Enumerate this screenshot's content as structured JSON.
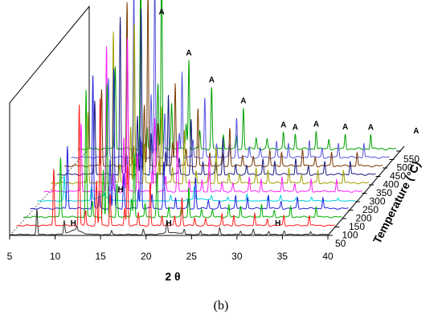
{
  "chart_data": {
    "type": "line",
    "subtype": "stacked-3d-waterfall",
    "xlabel": "2 θ",
    "zlabel": "Temperature (°C)",
    "x_range": [
      5,
      40
    ],
    "x_ticks": [
      5,
      10,
      15,
      20,
      25,
      30,
      35,
      40
    ],
    "series": [
      {
        "temperature": 50,
        "color": "#333333",
        "pattern": "H"
      },
      {
        "temperature": 100,
        "color": "#ff1a1a",
        "pattern": "A"
      },
      {
        "temperature": 150,
        "color": "#00b000",
        "pattern": "A"
      },
      {
        "temperature": 200,
        "color": "#2222dd",
        "pattern": "A"
      },
      {
        "temperature": 250,
        "color": "#00d0e0",
        "pattern": "H"
      },
      {
        "temperature": 300,
        "color": "#ff22ff",
        "pattern": "A"
      },
      {
        "temperature": 350,
        "color": "#a0a000",
        "pattern": "A"
      },
      {
        "temperature": 400,
        "color": "#1a1a80",
        "pattern": "A"
      },
      {
        "temperature": 450,
        "color": "#7a3a00",
        "pattern": "A"
      },
      {
        "temperature": 500,
        "color": "#5555dd",
        "pattern": "A"
      },
      {
        "temperature": 550,
        "color": "#00a000",
        "pattern": "A"
      }
    ],
    "annotations": [
      {
        "text": "A",
        "x": 14.2,
        "series_temperature": 550
      },
      {
        "text": "A",
        "x": 17.2,
        "series_temperature": 550
      },
      {
        "text": "A",
        "x": 19.7,
        "series_temperature": 550
      },
      {
        "text": "A",
        "x": 23.2,
        "series_temperature": 550
      },
      {
        "text": "A",
        "x": 27.6,
        "series_temperature": 550
      },
      {
        "text": "A",
        "x": 28.9,
        "series_temperature": 550
      },
      {
        "text": "A",
        "x": 31.2,
        "series_temperature": 550
      },
      {
        "text": "A",
        "x": 34.4,
        "series_temperature": 550
      },
      {
        "text": "A",
        "x": 37.2,
        "series_temperature": 550
      },
      {
        "text": "A",
        "x": 42.2,
        "series_temperature": 550
      },
      {
        "text": "H",
        "x": 12.0,
        "series_temperature": 50
      },
      {
        "text": "H",
        "x": 22.5,
        "series_temperature": 50
      },
      {
        "text": "H",
        "x": 34.5,
        "series_temperature": 50
      },
      {
        "text": "H",
        "x": 14.2,
        "series_temperature": 250
      }
    ],
    "grid": false,
    "legend": "none"
  },
  "caption": "(b)"
}
